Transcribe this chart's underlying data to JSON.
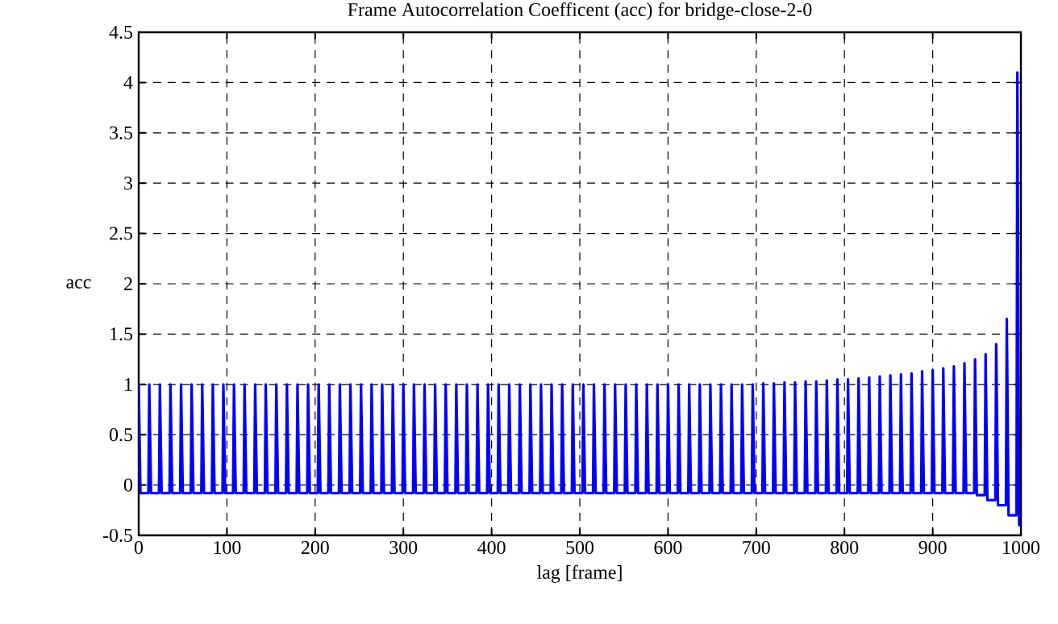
{
  "chart_data": {
    "type": "line",
    "title": "Frame Autocorrelation Coefficent (acc) for bridge-close-2-0",
    "xlabel": "lag [frame]",
    "ylabel": "acc",
    "xlim": [
      0,
      1000
    ],
    "ylim": [
      -0.5,
      4.5
    ],
    "xticks": [
      0,
      100,
      200,
      300,
      400,
      500,
      600,
      700,
      800,
      900,
      1000
    ],
    "yticks": [
      -0.5,
      0,
      0.5,
      1,
      1.5,
      2,
      2.5,
      3,
      3.5,
      4,
      4.5
    ],
    "grid": true,
    "line_style": "solid",
    "marker": "none",
    "series": [
      {
        "color": "#0000ff",
        "x": [
          0,
          2,
          11,
          12,
          14,
          23,
          24,
          26,
          35,
          36,
          38,
          47,
          48,
          50,
          59,
          60,
          62,
          71,
          72,
          74,
          83,
          84,
          86,
          95,
          96,
          98,
          107,
          108,
          110,
          119,
          120,
          122,
          131,
          132,
          134,
          143,
          144,
          146,
          155,
          156,
          158,
          167,
          168,
          170,
          179,
          180,
          182,
          191,
          192,
          194,
          203,
          204,
          206,
          215,
          216,
          218,
          227,
          228,
          230,
          239,
          240,
          242,
          251,
          252,
          254,
          263,
          264,
          266,
          275,
          276,
          278,
          287,
          288,
          290,
          299,
          300,
          302,
          311,
          312,
          314,
          323,
          324,
          326,
          335,
          336,
          338,
          347,
          348,
          350,
          359,
          360,
          362,
          371,
          372,
          374,
          383,
          384,
          386,
          395,
          396,
          398,
          407,
          408,
          410,
          419,
          420,
          422,
          431,
          432,
          434,
          443,
          444,
          446,
          455,
          456,
          458,
          467,
          468,
          470,
          479,
          480,
          482,
          491,
          492,
          494,
          503,
          504,
          506,
          515,
          516,
          518,
          527,
          528,
          530,
          539,
          540,
          542,
          551,
          552,
          554,
          563,
          564,
          566,
          575,
          576,
          578,
          587,
          588,
          590,
          599,
          600,
          602,
          611,
          612,
          614,
          623,
          624,
          626,
          635,
          636,
          638,
          647,
          648,
          650,
          659,
          660,
          662,
          671,
          672,
          674,
          683,
          684,
          686,
          695,
          696,
          698,
          707,
          708,
          710,
          719,
          720,
          722,
          731,
          732,
          734,
          743,
          744,
          746,
          755,
          756,
          758,
          767,
          768,
          770,
          779,
          780,
          782,
          791,
          792,
          794,
          803,
          804,
          806,
          815,
          816,
          818,
          827,
          828,
          830,
          839,
          840,
          842,
          851,
          852,
          854,
          863,
          864,
          866,
          875,
          876,
          878,
          887,
          888,
          890,
          899,
          900,
          902,
          911,
          912,
          914,
          923,
          924,
          926,
          935,
          936,
          938,
          947,
          948,
          950,
          959,
          960,
          962,
          971,
          972,
          974,
          983,
          984,
          986,
          995,
          996,
          998,
          1000
        ],
        "values": [
          1,
          -0.08,
          -0.08,
          1,
          -0.08,
          -0.08,
          1,
          -0.08,
          -0.08,
          1,
          -0.08,
          -0.08,
          1,
          -0.08,
          -0.08,
          1,
          -0.08,
          -0.08,
          1,
          -0.08,
          -0.08,
          1,
          -0.08,
          -0.08,
          1,
          -0.08,
          -0.08,
          1,
          -0.08,
          -0.08,
          1,
          -0.08,
          -0.08,
          1,
          -0.08,
          -0.08,
          1,
          -0.08,
          -0.08,
          1,
          -0.08,
          -0.08,
          1,
          -0.08,
          -0.08,
          1,
          -0.08,
          -0.08,
          1,
          -0.08,
          -0.08,
          1,
          -0.08,
          -0.08,
          1,
          -0.08,
          -0.08,
          1,
          -0.08,
          -0.08,
          1,
          -0.08,
          -0.08,
          1,
          -0.08,
          -0.08,
          1,
          -0.08,
          -0.08,
          1,
          -0.08,
          -0.08,
          1,
          -0.08,
          -0.08,
          1,
          -0.08,
          -0.08,
          1,
          -0.08,
          -0.08,
          1,
          -0.08,
          -0.08,
          1,
          -0.08,
          -0.08,
          1,
          -0.08,
          -0.08,
          1,
          -0.08,
          -0.08,
          1,
          -0.08,
          -0.08,
          1,
          -0.08,
          -0.08,
          1,
          -0.08,
          -0.08,
          1,
          -0.08,
          -0.08,
          1,
          -0.08,
          -0.08,
          1,
          -0.08,
          -0.08,
          1,
          -0.08,
          -0.08,
          1,
          -0.08,
          -0.08,
          1,
          -0.08,
          -0.08,
          1,
          -0.08,
          -0.08,
          1,
          -0.08,
          -0.08,
          1,
          -0.08,
          -0.08,
          1,
          -0.08,
          -0.08,
          1,
          -0.08,
          -0.08,
          1,
          -0.08,
          -0.08,
          1,
          -0.08,
          -0.08,
          1,
          -0.08,
          -0.08,
          1,
          -0.08,
          -0.08,
          1,
          -0.08,
          -0.08,
          1,
          -0.08,
          -0.08,
          1,
          -0.08,
          -0.08,
          1,
          -0.08,
          -0.08,
          1,
          -0.08,
          -0.08,
          1,
          -0.08,
          -0.08,
          1,
          -0.08,
          -0.08,
          1,
          -0.08,
          -0.08,
          1,
          -0.08,
          -0.08,
          1,
          -0.08,
          -0.08,
          1.01,
          -0.08,
          -0.08,
          1.01,
          -0.08,
          -0.08,
          1.02,
          -0.08,
          -0.08,
          1.02,
          -0.08,
          -0.08,
          1.03,
          -0.08,
          -0.08,
          1.03,
          -0.08,
          -0.08,
          1.04,
          -0.08,
          -0.08,
          1.05,
          -0.08,
          -0.08,
          1.05,
          -0.08,
          -0.08,
          1.06,
          -0.08,
          -0.08,
          1.07,
          -0.08,
          -0.08,
          1.08,
          -0.08,
          -0.08,
          1.09,
          -0.08,
          -0.08,
          1.1,
          -0.08,
          -0.08,
          1.11,
          -0.08,
          -0.08,
          1.13,
          -0.08,
          -0.08,
          1.14,
          -0.08,
          -0.08,
          1.16,
          -0.08,
          -0.08,
          1.18,
          -0.08,
          -0.08,
          1.21,
          -0.08,
          -0.08,
          1.25,
          -0.1,
          -0.1,
          1.3,
          -0.15,
          -0.15,
          1.4,
          -0.2,
          -0.2,
          1.65,
          -0.3,
          -0.3,
          4.1,
          -0.4,
          -0.4
        ]
      }
    ]
  }
}
